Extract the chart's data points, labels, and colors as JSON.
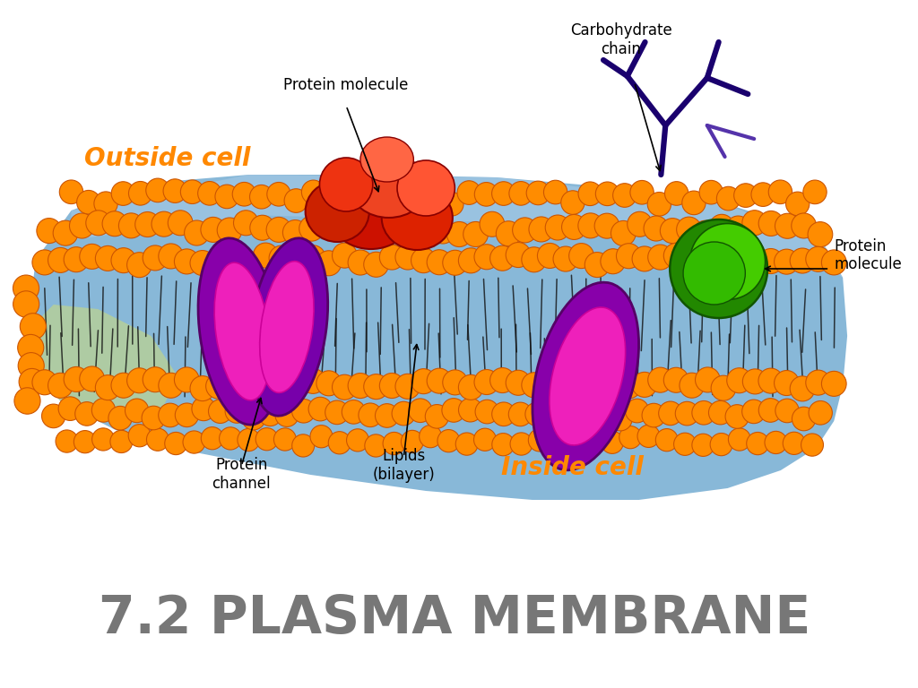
{
  "title": "7.2 PLASMA MEMBRANE",
  "title_fontsize": 42,
  "title_color": "#777777",
  "title_weight": "bold",
  "bg_color": "#ffffff",
  "outside_cell": {
    "text": "Outside cell",
    "color": "#ff8800",
    "fontsize": 20,
    "style": "italic",
    "weight": "bold"
  },
  "inside_cell": {
    "text": "Inside cell",
    "color": "#ff8800",
    "fontsize": 20,
    "style": "italic",
    "weight": "bold"
  },
  "label_protein_top": "Protein molecule",
  "label_carbo": "Carbohydrate\nchain",
  "label_protein_right": "Protein\nmolecule",
  "label_protein_channel": "Protein\nchannel",
  "label_lipids": "Lipids\n(bilayer)",
  "label_fontsize": 12,
  "lipid_head_color": "#ff8c00",
  "lipid_head_edge": "#cc5500",
  "membrane_blue": "#8ab4cc",
  "membrane_blue2": "#a8c8e0",
  "protein_channel_outer": "#880088",
  "protein_channel_inner": "#ee20bb",
  "protein_red_dark": "#cc1100",
  "protein_red_light": "#ff6633",
  "protein_green_dark": "#228800",
  "protein_green_light": "#44cc00",
  "carbo_dark": "#1a006e",
  "carbo_light": "#6644aa"
}
